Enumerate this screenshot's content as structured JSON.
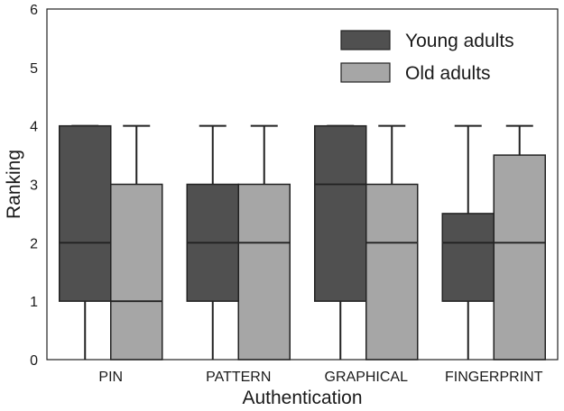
{
  "chart_data": {
    "type": "boxplot",
    "xlabel": "Authentication",
    "ylabel": "Ranking",
    "ylim": [
      0,
      6
    ],
    "yticks": [
      "0",
      "1",
      "2",
      "3",
      "4",
      "5",
      "6"
    ],
    "categories": [
      "PIN",
      "PATTERN",
      "GRAPHICAL",
      "FINGERPRINT"
    ],
    "legend_position": "top-right",
    "grid": false,
    "series": [
      {
        "name": "Young adults",
        "color": "#505050",
        "boxes": [
          {
            "whisker_low": 0,
            "q1": 1,
            "median": 2,
            "q3": 4,
            "whisker_high": 4
          },
          {
            "whisker_low": 0,
            "q1": 1,
            "median": 2,
            "q3": 3,
            "whisker_high": 4
          },
          {
            "whisker_low": 0,
            "q1": 1,
            "median": 3,
            "q3": 4,
            "whisker_high": 4
          },
          {
            "whisker_low": 0,
            "q1": 1,
            "median": 2,
            "q3": 2.5,
            "whisker_high": 4
          }
        ]
      },
      {
        "name": "Old adults",
        "color": "#a6a6a6",
        "boxes": [
          {
            "whisker_low": 0,
            "q1": 0,
            "median": 1,
            "q3": 3,
            "whisker_high": 4
          },
          {
            "whisker_low": 0,
            "q1": 0,
            "median": 2,
            "q3": 3,
            "whisker_high": 4
          },
          {
            "whisker_low": 0,
            "q1": 0,
            "median": 2,
            "q3": 3,
            "whisker_high": 4
          },
          {
            "whisker_low": 0,
            "q1": 0,
            "median": 2,
            "q3": 3.5,
            "whisker_high": 4
          }
        ]
      }
    ]
  }
}
